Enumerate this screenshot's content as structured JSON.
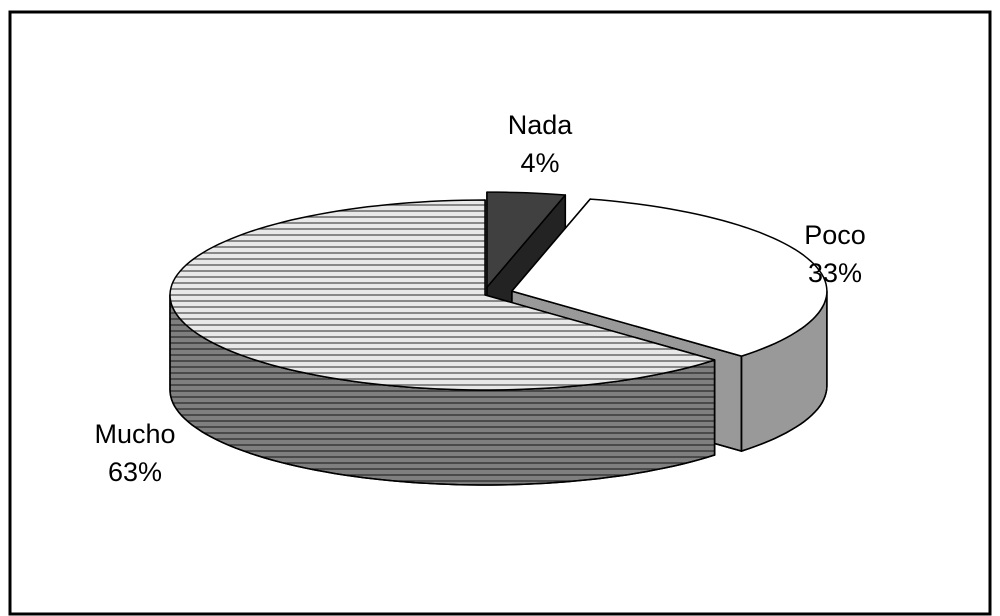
{
  "chart_data": {
    "type": "pie3d",
    "categories": [
      "Nada",
      "Poco",
      "Mucho"
    ],
    "values": [
      4,
      33,
      63
    ],
    "value_labels": [
      "4%",
      "33%",
      "63%"
    ],
    "colors": [
      "#404040",
      "#ffffff",
      "#d8d8d8"
    ],
    "hatch": [
      false,
      false,
      true
    ]
  }
}
